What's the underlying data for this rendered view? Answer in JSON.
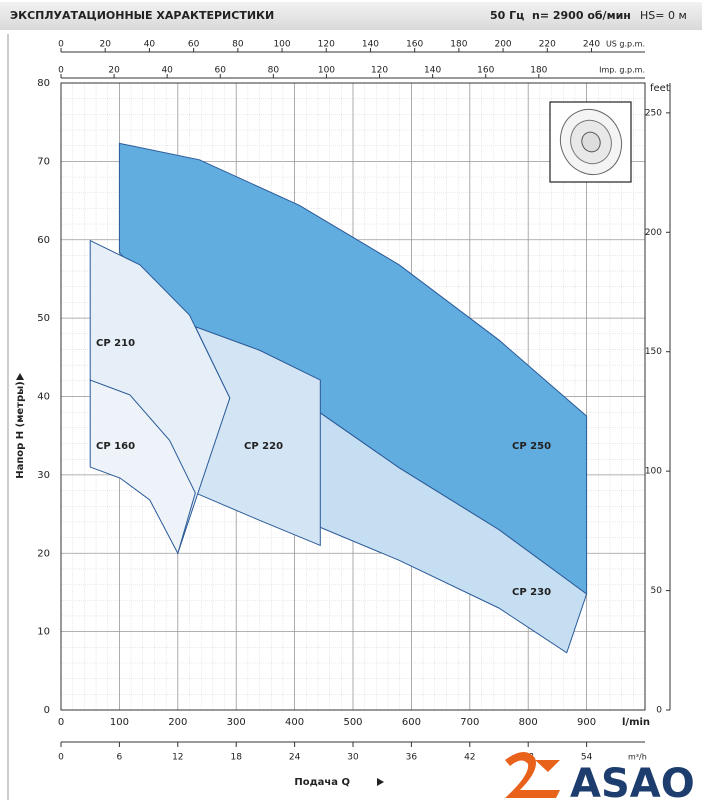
{
  "header": {
    "title": "ЭКСПЛУАТАЦИОННЫЕ ХАРАКТЕРИСТИКИ",
    "frequency": "50 Гц",
    "speed": "n= 2900 об/мин",
    "suction": "HS= 0 м"
  },
  "chart_data": {
    "type": "area",
    "y_label": "Напор H (метры)",
    "x_label": "Подача Q",
    "x_unit": "l/min",
    "xlim": [
      0,
      1000
    ],
    "xticks": [
      0,
      100,
      200,
      300,
      400,
      500,
      600,
      700,
      800,
      900
    ],
    "ylim": [
      0,
      80
    ],
    "yticks": [
      0,
      10,
      20,
      30,
      40,
      50,
      60,
      70,
      80
    ],
    "grid": true,
    "y2_label": "feet",
    "y2lim": [
      0,
      262.5
    ],
    "y2ticks": [
      0,
      50,
      100,
      150,
      200,
      250
    ],
    "top_axes": [
      {
        "label": "US g.p.m.",
        "lim": [
          0,
          264.2
        ],
        "ticks": [
          0,
          20,
          40,
          60,
          80,
          100,
          120,
          140,
          160,
          180,
          200,
          220,
          240
        ]
      },
      {
        "label": "Imp. g.p.m.",
        "lim": [
          0,
          220
        ],
        "ticks": [
          0,
          20,
          40,
          60,
          80,
          100,
          120,
          140,
          160,
          180
        ]
      }
    ],
    "bottom_axis": {
      "label": "m³/h",
      "lim": [
        0,
        60
      ],
      "ticks": [
        0,
        6,
        12,
        18,
        24,
        30,
        36,
        42,
        48,
        54
      ]
    },
    "series": [
      {
        "name": "CP 250",
        "color": "#62ade0",
        "x": [
          100,
          237,
          408,
          579,
          750,
          900,
          900,
          750,
          579,
          444,
          323,
          230,
          152,
          100
        ],
        "values": [
          72.3,
          70.2,
          64.4,
          56.8,
          47.2,
          37.5,
          14.8,
          23.0,
          30.9,
          37.9,
          44.0,
          48.9,
          53.6,
          58.4
        ]
      },
      {
        "name": "CP 230",
        "color": "#c6def2",
        "x": [
          230,
          323,
          444,
          579,
          750,
          900,
          866,
          750,
          579,
          444,
          323,
          230
        ],
        "values": [
          48.9,
          44.0,
          37.9,
          30.9,
          23.0,
          14.8,
          7.3,
          13.0,
          19.1,
          23.3,
          25.5,
          27.7
        ]
      },
      {
        "name": "CP 220",
        "color": "#d3e5f4",
        "x": [
          230,
          340,
          444,
          444,
          340,
          230,
          289
        ],
        "values": [
          48.9,
          45.9,
          42.1,
          21.0,
          24.2,
          27.7,
          39.8
        ]
      },
      {
        "name": "CP 210",
        "color": "#e6eff8",
        "x": [
          50,
          135,
          220,
          289,
          200,
          169,
          118,
          50
        ],
        "values": [
          59.9,
          56.8,
          50.4,
          39.8,
          20.0,
          26.8,
          37.0,
          42.1
        ]
      },
      {
        "name": "CP 160",
        "color": "#edf3f9",
        "x": [
          50,
          118,
          186,
          230,
          200,
          152,
          101,
          50
        ],
        "values": [
          42.1,
          40.2,
          34.4,
          27.7,
          20.0,
          26.8,
          29.6,
          31.0
        ]
      }
    ]
  },
  "logo": "ASAO"
}
